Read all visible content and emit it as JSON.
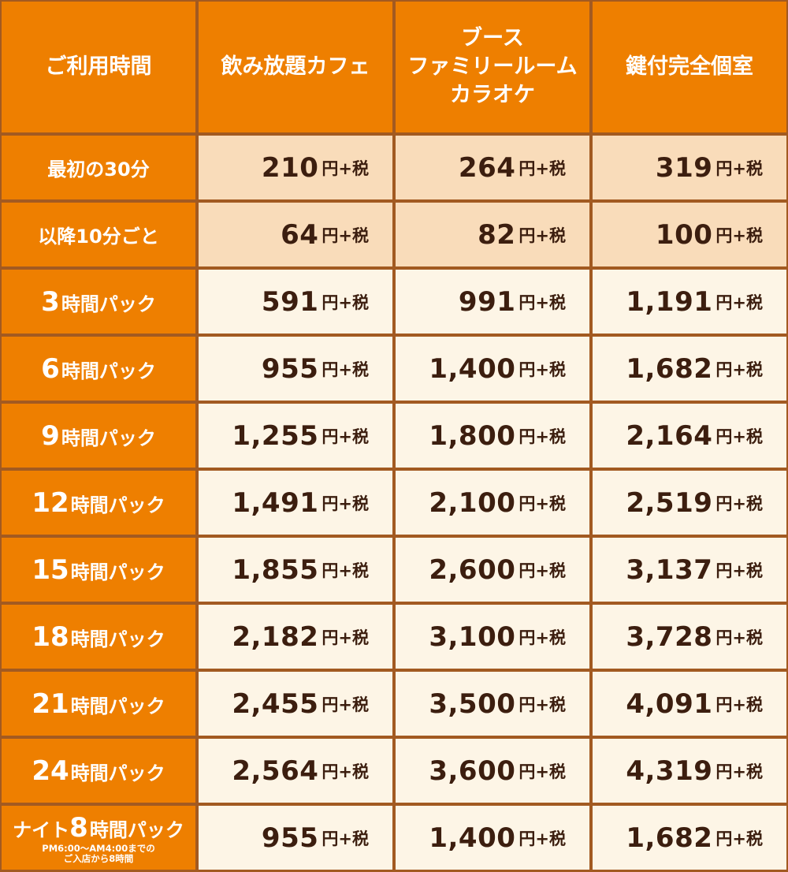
{
  "columns": [
    "ご利用時間",
    "飲み放題カフェ",
    [
      "ブース",
      "ファミリールーム",
      "カラオケ"
    ],
    "鍵付完全個室"
  ],
  "unit": "円+税",
  "rows": [
    {
      "prefix": "",
      "label": "最初の30分",
      "prices": [
        "210",
        "264",
        "319"
      ],
      "tint": true
    },
    {
      "prefix": "",
      "label": "以降10分ごと",
      "prices": [
        "64",
        "82",
        "100"
      ],
      "tint": true
    },
    {
      "prefix": "3",
      "label": "時間パック",
      "prices": [
        "591",
        "991",
        "1,191"
      ]
    },
    {
      "prefix": "6",
      "label": "時間パック",
      "prices": [
        "955",
        "1,400",
        "1,682"
      ]
    },
    {
      "prefix": "9",
      "label": "時間パック",
      "prices": [
        "1,255",
        "1,800",
        "2,164"
      ]
    },
    {
      "prefix": "12",
      "label": "時間パック",
      "prices": [
        "1,491",
        "2,100",
        "2,519"
      ]
    },
    {
      "prefix": "15",
      "label": "時間パック",
      "prices": [
        "1,855",
        "2,600",
        "3,137"
      ]
    },
    {
      "prefix": "18",
      "label": "時間パック",
      "prices": [
        "2,182",
        "3,100",
        "3,728"
      ]
    },
    {
      "prefix": "21",
      "label": "時間パック",
      "prices": [
        "2,455",
        "3,500",
        "4,091"
      ]
    },
    {
      "prefix": "24",
      "label": "時間パック",
      "prices": [
        "2,564",
        "3,600",
        "4,319"
      ]
    },
    {
      "prefix": "ナイト",
      "prefix2": "8",
      "label": "時間パック",
      "note": [
        "PM6:00～AM4:00までの",
        "ご入店から8時間"
      ],
      "prices": [
        "955",
        "1,400",
        "1,682"
      ]
    }
  ]
}
